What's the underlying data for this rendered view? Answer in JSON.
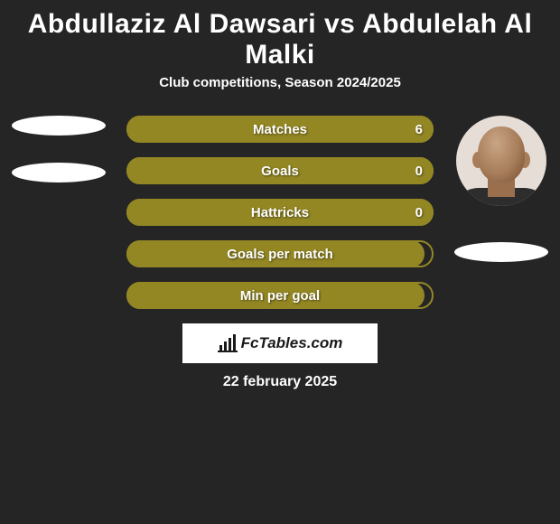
{
  "title": "Abdullaziz Al Dawsari vs Abdulelah Al Malki",
  "subtitle": "Club competitions, Season 2024/2025",
  "date": "22 february 2025",
  "logo_text": "FcTables.com",
  "colors": {
    "background": "#262525",
    "bar_fill": "#938724",
    "bar_border": "#938724",
    "text": "#ffffff"
  },
  "bars": [
    {
      "label": "Matches",
      "value": "6",
      "fill_width_pct": 100,
      "show_value": true
    },
    {
      "label": "Goals",
      "value": "0",
      "fill_width_pct": 100,
      "show_value": true
    },
    {
      "label": "Hattricks",
      "value": "0",
      "fill_width_pct": 100,
      "show_value": true
    },
    {
      "label": "Goals per match",
      "value": "",
      "fill_width_pct": 97,
      "show_value": false
    },
    {
      "label": "Min per goal",
      "value": "",
      "fill_width_pct": 97,
      "show_value": false
    }
  ],
  "players": {
    "left": {
      "has_photo": false
    },
    "right": {
      "has_photo": true
    }
  }
}
